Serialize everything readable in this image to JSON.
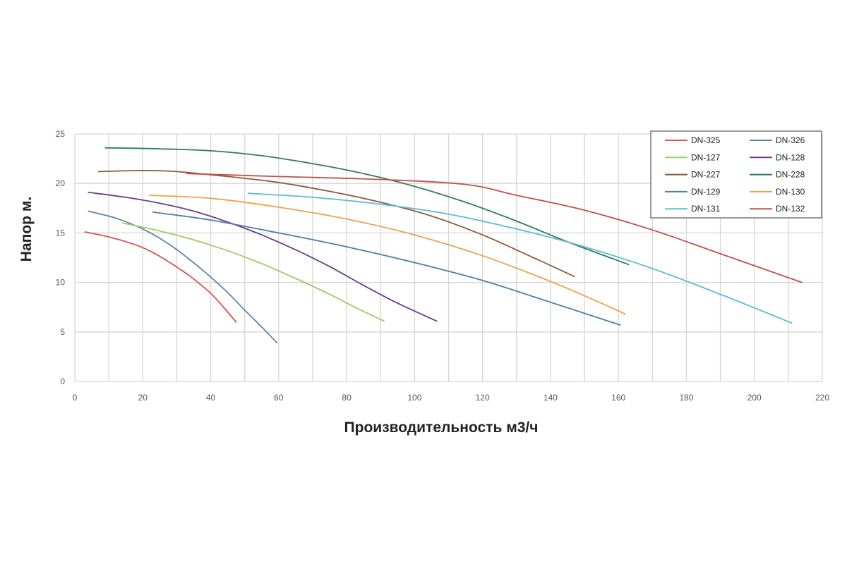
{
  "chart_data": {
    "type": "line",
    "xlabel": "Производительность м3/ч",
    "ylabel": "Напор м.",
    "xlim": [
      0,
      220
    ],
    "ylim": [
      0,
      25
    ],
    "xticks": [
      0,
      20,
      40,
      60,
      80,
      100,
      120,
      140,
      160,
      180,
      200,
      220
    ],
    "yticks": [
      0,
      5,
      10,
      15,
      20,
      25
    ],
    "grid": true,
    "legend_position": "top-right",
    "series": [
      {
        "name": "DN-325",
        "color": "#d9534f",
        "x": [
          3,
          10,
          17,
          22,
          28,
          34,
          40,
          44,
          47.5
        ],
        "y": [
          15.1,
          14.6,
          13.9,
          13.2,
          12.0,
          10.6,
          8.9,
          7.4,
          6.0
        ]
      },
      {
        "name": "DN-326",
        "color": "#5b86a8",
        "x": [
          4,
          12,
          20,
          28,
          36,
          44,
          50,
          55,
          59.5
        ],
        "y": [
          17.2,
          16.5,
          15.4,
          13.8,
          11.7,
          9.3,
          7.2,
          5.5,
          3.9
        ]
      },
      {
        "name": "DN-127",
        "color": "#9ccc65",
        "x": [
          14,
          25,
          35,
          45,
          55,
          65,
          75,
          83,
          91
        ],
        "y": [
          16.0,
          15.2,
          14.3,
          13.2,
          11.9,
          10.4,
          8.8,
          7.4,
          6.1
        ]
      },
      {
        "name": "DN-128",
        "color": "#6a3d8c",
        "x": [
          4,
          15,
          25,
          35,
          45,
          55,
          65,
          75,
          85,
          95,
          106.5
        ],
        "y": [
          19.1,
          18.6,
          18.0,
          17.2,
          16.1,
          14.8,
          13.3,
          11.6,
          9.7,
          7.9,
          6.1
        ]
      },
      {
        "name": "DN-227",
        "color": "#8d5a3b",
        "x": [
          7,
          20,
          30,
          45,
          60,
          75,
          90,
          105,
          120,
          135,
          147
        ],
        "y": [
          21.2,
          21.3,
          21.2,
          20.7,
          20.1,
          19.2,
          18.1,
          16.7,
          14.8,
          12.5,
          10.6
        ]
      },
      {
        "name": "DN-228",
        "color": "#2e7d5b",
        "x": [
          9,
          25,
          40,
          55,
          70,
          85,
          100,
          115,
          130,
          145,
          163
        ],
        "y": [
          23.6,
          23.5,
          23.3,
          22.8,
          22.0,
          21.0,
          19.7,
          18.1,
          16.2,
          14.1,
          11.8
        ]
      },
      {
        "name": "DN-129",
        "color": "#4a7fa8",
        "x": [
          23,
          40,
          60,
          80,
          100,
          120,
          140,
          160.5
        ],
        "y": [
          17.1,
          16.3,
          15.0,
          13.6,
          12.0,
          10.2,
          8.0,
          5.7
        ]
      },
      {
        "name": "DN-130",
        "color": "#f0a04b",
        "x": [
          22,
          40,
          60,
          80,
          100,
          120,
          140,
          155,
          162
        ],
        "y": [
          18.8,
          18.5,
          17.6,
          16.4,
          14.8,
          12.7,
          10.1,
          7.9,
          6.8
        ]
      },
      {
        "name": "DN-131",
        "color": "#5bbcd6",
        "x": [
          51,
          70,
          90,
          110,
          130,
          150,
          170,
          190,
          211
        ],
        "y": [
          19.0,
          18.6,
          17.9,
          16.9,
          15.4,
          13.6,
          11.4,
          8.8,
          5.9
        ]
      },
      {
        "name": "DN-132",
        "color": "#c0504d",
        "x": [
          33,
          60,
          90,
          115,
          130,
          150,
          170,
          190,
          214
        ],
        "y": [
          21.0,
          20.7,
          20.4,
          19.9,
          18.8,
          17.3,
          15.3,
          12.9,
          10.0
        ]
      }
    ]
  }
}
